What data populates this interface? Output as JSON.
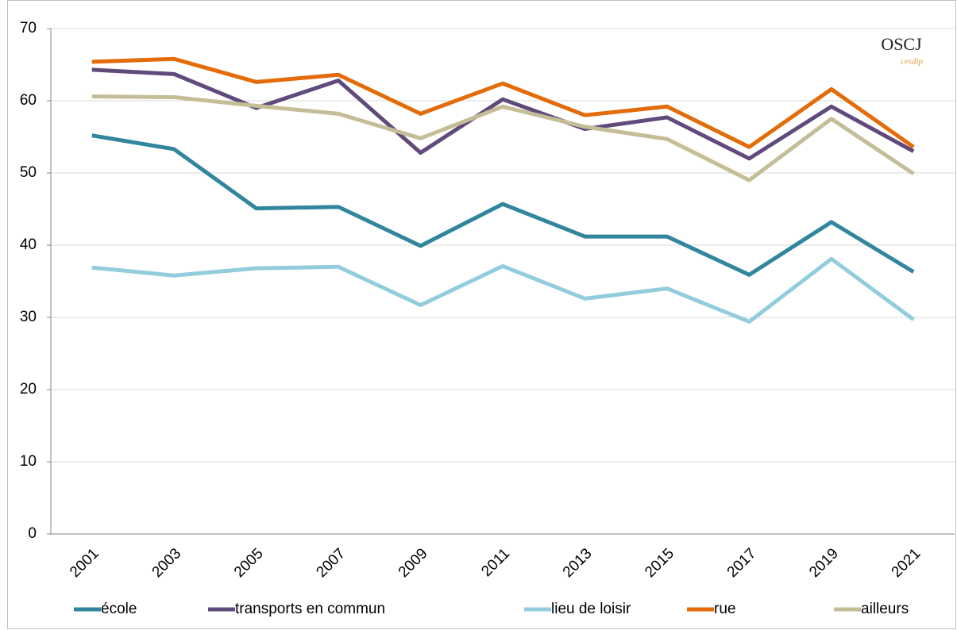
{
  "chart_data": {
    "type": "line",
    "categories": [
      "2001",
      "2003",
      "2005",
      "2007",
      "2009",
      "2011",
      "2013",
      "2015",
      "2017",
      "2019",
      "2021"
    ],
    "series": [
      {
        "name": "école",
        "color": "#31859c",
        "values": [
          55.2,
          53.3,
          45.1,
          45.3,
          39.9,
          45.7,
          41.2,
          41.2,
          35.9,
          43.2,
          36.3
        ]
      },
      {
        "name": "transports en commun",
        "color": "#604a7b",
        "values": [
          64.3,
          63.7,
          59.0,
          62.8,
          52.8,
          60.2,
          56.1,
          57.7,
          52.0,
          59.2,
          53.0
        ]
      },
      {
        "name": "lieu de loisir",
        "color": "#93cddd",
        "values": [
          36.9,
          35.8,
          36.8,
          37.0,
          31.7,
          37.1,
          32.6,
          34.0,
          29.4,
          38.1,
          29.7
        ]
      },
      {
        "name": "rue",
        "color": "#e36c09",
        "values": [
          65.4,
          65.8,
          62.6,
          63.6,
          58.2,
          62.4,
          58.0,
          59.2,
          53.6,
          61.6,
          53.6
        ]
      },
      {
        "name": "ailleurs",
        "color": "#c4bd97",
        "values": [
          60.6,
          60.5,
          59.3,
          58.2,
          54.8,
          59.2,
          56.4,
          54.7,
          49.0,
          57.5,
          49.9
        ]
      }
    ],
    "ylim": [
      0,
      70
    ],
    "yticks": [
      0,
      10,
      20,
      30,
      40,
      50,
      60,
      70
    ],
    "grid": true,
    "logo": {
      "text": "OSCJ",
      "subtext": "cesdip"
    }
  }
}
